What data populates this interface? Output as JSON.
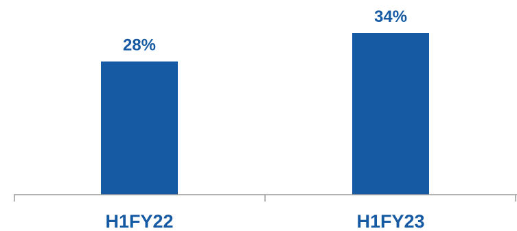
{
  "colors": {
    "bar": "#165aa3",
    "label": "#165aa3",
    "axis": "#9a9a9a",
    "background": "#ffffff"
  },
  "chart_data": {
    "type": "bar",
    "categories": [
      "H1FY22",
      "H1FY23"
    ],
    "values": [
      28,
      34
    ],
    "data_labels": [
      "28%",
      "34%"
    ],
    "value_unit": "%",
    "title": "",
    "xlabel": "",
    "ylabel": "",
    "ylim": [
      0,
      40
    ],
    "grid": false,
    "legend": "none"
  }
}
